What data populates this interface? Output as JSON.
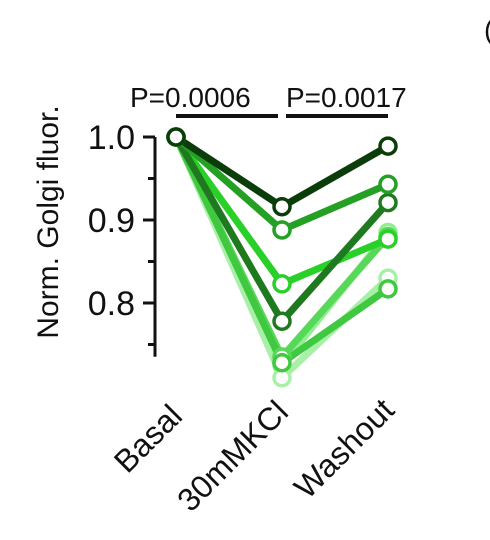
{
  "chart_data": {
    "type": "line",
    "categories": [
      "Basal",
      "30mMKCl",
      "Washout"
    ],
    "ylabel": "Norm. Golgi fluor.",
    "ylim": [
      0.74,
      1.0
    ],
    "yticks": [
      1.0,
      0.9,
      0.8
    ],
    "ytick_labels": [
      "1.0",
      "0.9",
      "0.8"
    ],
    "annotations": [
      {
        "text": "P=0.0006",
        "from": 0,
        "to": 1
      },
      {
        "text": "P=0.0017",
        "from": 1,
        "to": 2
      }
    ],
    "partial_panel_glyph": "(",
    "series": [
      {
        "color": "#90f090",
        "values": [
          1.0,
          0.725,
          0.885
        ]
      },
      {
        "color": "#a8f0a8",
        "values": [
          1.0,
          0.71,
          0.83
        ]
      },
      {
        "color": "#58d858",
        "values": [
          1.0,
          0.735,
          0.88
        ]
      },
      {
        "color": "#40c840",
        "values": [
          1.0,
          0.728,
          0.817
        ]
      },
      {
        "color": "#28d028",
        "values": [
          1.0,
          0.823,
          0.877
        ]
      },
      {
        "color": "#1f7a1f",
        "values": [
          1.0,
          0.778,
          0.921
        ]
      },
      {
        "color": "#24a024",
        "values": [
          1.0,
          0.888,
          0.943
        ]
      },
      {
        "color": "#0b3d0b",
        "values": [
          1.0,
          0.916,
          0.989
        ]
      }
    ]
  }
}
